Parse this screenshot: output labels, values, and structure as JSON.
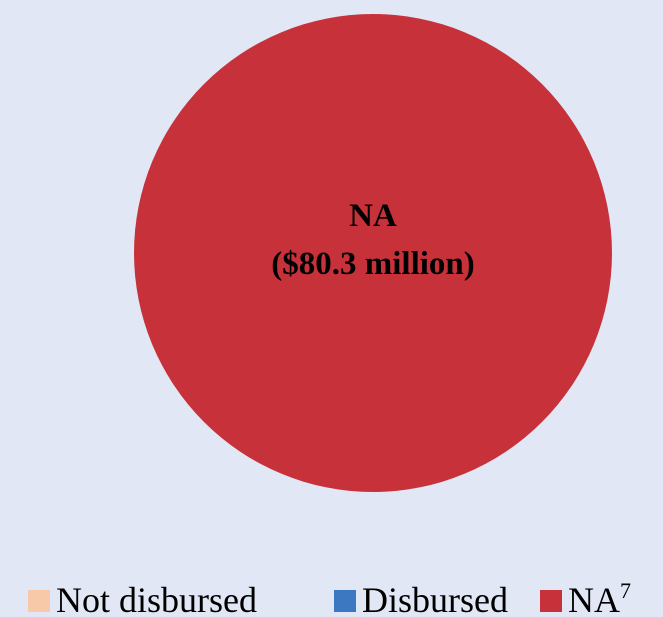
{
  "chart_data": {
    "type": "pie",
    "categories": [
      "Not disbursed",
      "Disbursed",
      "NA"
    ],
    "values": [
      0,
      0,
      80.3
    ],
    "unit": "$ million",
    "slice_labels": [
      {
        "category": "NA",
        "line1": "NA",
        "line2": "($80.3 million)"
      }
    ],
    "legend": {
      "placement": "bottom",
      "entries": [
        {
          "label": "Not disbursed",
          "sup": "",
          "color": "#f7c9a9"
        },
        {
          "label": "Disbursed",
          "sup": "",
          "color": "#3b78c1"
        },
        {
          "label": "NA",
          "sup": "7",
          "color": "#c7323a"
        }
      ]
    },
    "colors": [
      "#f7c9a9",
      "#3b78c1",
      "#c7323a"
    ],
    "background": "#e1e7f5"
  }
}
